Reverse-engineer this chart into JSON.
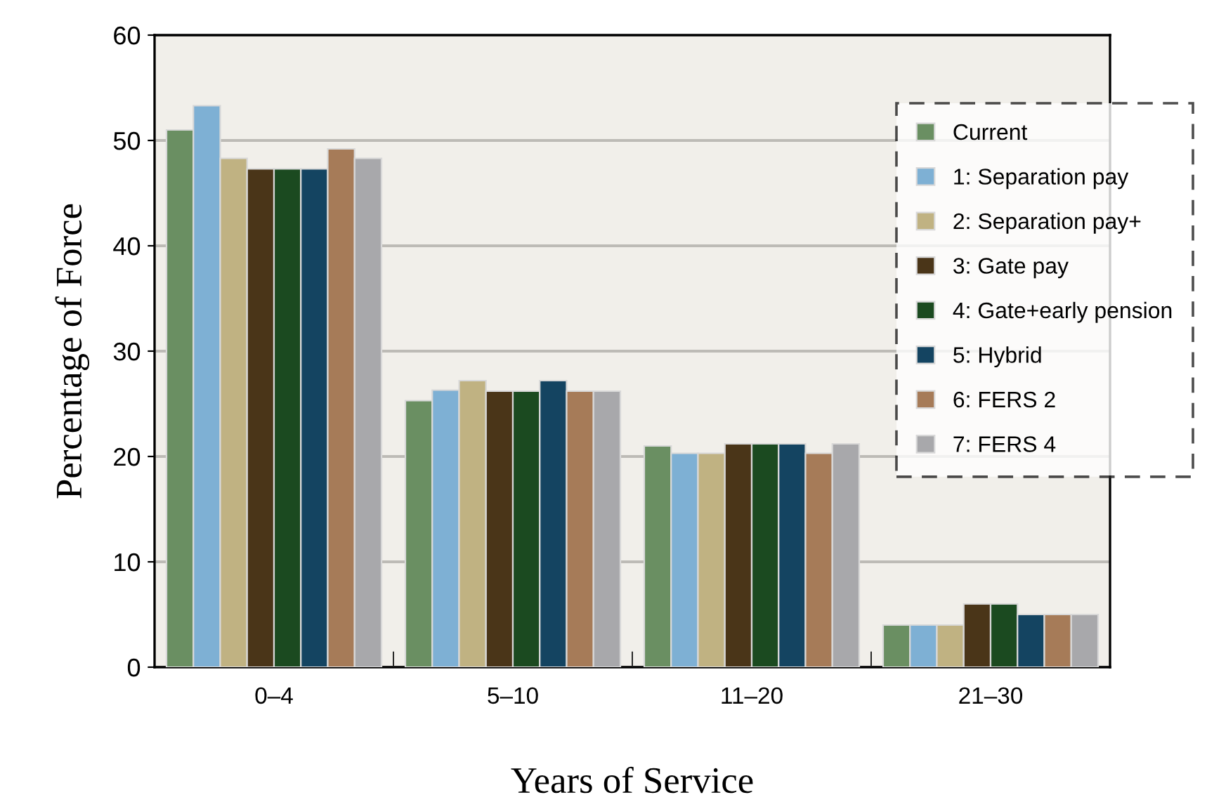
{
  "chart_data": {
    "type": "bar",
    "xlabel": "Years of Service",
    "ylabel": "Percentage of Force",
    "categories": [
      "0–4",
      "5–10",
      "11–20",
      "21–30"
    ],
    "series": [
      {
        "name": "Current",
        "color": "#6a8f62",
        "values": [
          51,
          25.3,
          21,
          4
        ]
      },
      {
        "name": "1: Separation pay",
        "color": "#7eb0d4",
        "values": [
          53.3,
          26.3,
          20.3,
          4
        ]
      },
      {
        "name": "2: Separation pay+",
        "color": "#c0b282",
        "values": [
          48.3,
          27.2,
          20.3,
          4
        ]
      },
      {
        "name": "3: Gate pay",
        "color": "#4a3518",
        "values": [
          47.3,
          26.2,
          21.2,
          6
        ]
      },
      {
        "name": "4: Gate+early pension",
        "color": "#1b4a20",
        "values": [
          47.3,
          26.2,
          21.2,
          6
        ]
      },
      {
        "name": "5: Hybrid",
        "color": "#144461",
        "values": [
          47.3,
          27.2,
          21.2,
          5
        ]
      },
      {
        "name": "6: FERS 2",
        "color": "#a67b58",
        "values": [
          49.2,
          26.2,
          20.3,
          5
        ]
      },
      {
        "name": "7: FERS 4",
        "color": "#a8a8ab",
        "values": [
          48.3,
          26.2,
          21.2,
          5
        ]
      }
    ],
    "ylim": [
      0,
      60
    ],
    "yticks": [
      0,
      10,
      20,
      30,
      40,
      50,
      60
    ],
    "grid": "y",
    "legend": "right"
  }
}
